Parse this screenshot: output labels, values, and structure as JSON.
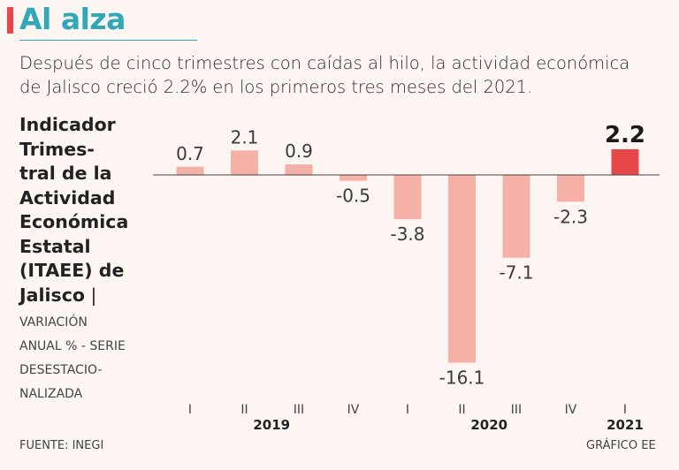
{
  "header": {
    "title": "Al alza",
    "subtitle": "Después de cinco trimestres con caídas al hilo, la actividad económica de Jalisco creció 2.2% en los primeros tres meses del 2021."
  },
  "indicator": {
    "title": "Indicador\nTrimes-\ntral de la\nActividad\nEconómica\nEstatal\n(ITAEE) de\nJalisco",
    "separator": " |",
    "subtitle": "VARIACIÓN\nANUAL % - SERIE\nDESESTACIO-\nNALIZADA"
  },
  "footer": {
    "source": "FUENTE: INEGI",
    "credit": "GRÁFICO EE"
  },
  "colors": {
    "bar": "#f5b0a8",
    "highlight": "#e8474a",
    "title": "#2fa9b8"
  },
  "chart_data": {
    "type": "bar",
    "categories": [
      "I",
      "II",
      "III",
      "IV",
      "I",
      "II",
      "III",
      "IV",
      "I"
    ],
    "year_groups": [
      {
        "label": "2019",
        "start": 0,
        "end": 3
      },
      {
        "label": "2020",
        "start": 4,
        "end": 7
      },
      {
        "label": "2021",
        "start": 8,
        "end": 8
      }
    ],
    "values": [
      0.7,
      2.1,
      0.9,
      -0.5,
      -3.8,
      -16.1,
      -7.1,
      -2.3,
      2.2
    ],
    "data_labels": [
      "0.7",
      "2.1",
      "0.9",
      "-0.5",
      "-3.8",
      "-16.1",
      "-7.1",
      "-2.3",
      "2.2"
    ],
    "highlight_index": 8,
    "ylim": [
      -16.1,
      2.2
    ],
    "grid": false,
    "legend": "none"
  }
}
